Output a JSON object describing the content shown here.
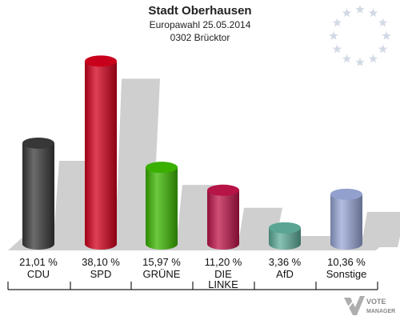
{
  "header": {
    "title": "Stadt Oberhausen",
    "subtitle": "Europawahl 25.05.2014",
    "region": "0302 Brücktor"
  },
  "chart_data": {
    "type": "bar",
    "title": "Stadt Oberhausen",
    "subtitle": "Europawahl 25.05.2014",
    "categories": [
      "CDU",
      "SPD",
      "GRÜNE",
      "DIE LINKE",
      "AfD",
      "Sonstige"
    ],
    "category_lines": [
      [
        "CDU"
      ],
      [
        "SPD"
      ],
      [
        "GRÜNE"
      ],
      [
        "DIE",
        "LINKE"
      ],
      [
        "AfD"
      ],
      [
        "Sonstige"
      ]
    ],
    "values": [
      21.01,
      38.1,
      15.97,
      11.2,
      3.36,
      10.36
    ],
    "value_labels": [
      "21,01 %",
      "38,10 %",
      "15,97 %",
      "11,20 %",
      "3,36 %",
      "10,36 %"
    ],
    "colors": [
      "#3a3a3a",
      "#d4001c",
      "#3cb800",
      "#c0144a",
      "#5fae9b",
      "#9aa8d8"
    ],
    "ylim": [
      0,
      40
    ],
    "grid": false,
    "legend": "none"
  },
  "logo": {
    "line1": "VOTE",
    "line2": "MANAGER"
  }
}
